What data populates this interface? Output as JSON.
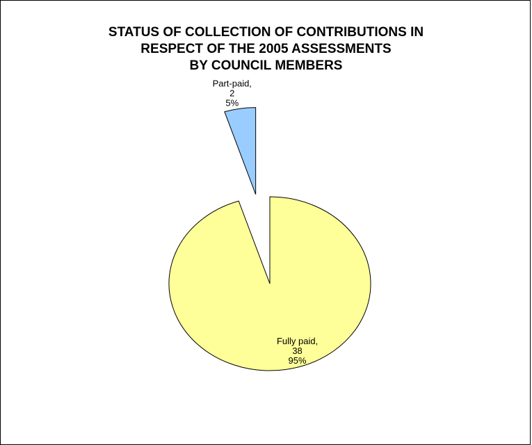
{
  "chart_data": {
    "type": "pie",
    "title_lines": [
      "STATUS OF COLLECTION OF CONTRIBUTIONS IN",
      "RESPECT OF THE 2005 ASSESSMENTS",
      "BY COUNCIL MEMBERS"
    ],
    "slices": [
      {
        "name": "Fully paid",
        "value": 38,
        "percent": "95%",
        "label_lines": [
          "Fully paid,",
          "38",
          "95%"
        ],
        "color": "#FFFF99"
      },
      {
        "name": "Part-paid",
        "value": 2,
        "percent": "5%",
        "label_lines": [
          "Part-paid,",
          "2",
          "5%"
        ],
        "color": "#99CCFF",
        "exploded": true
      }
    ],
    "legend": "none",
    "outline_color": "#000000"
  }
}
